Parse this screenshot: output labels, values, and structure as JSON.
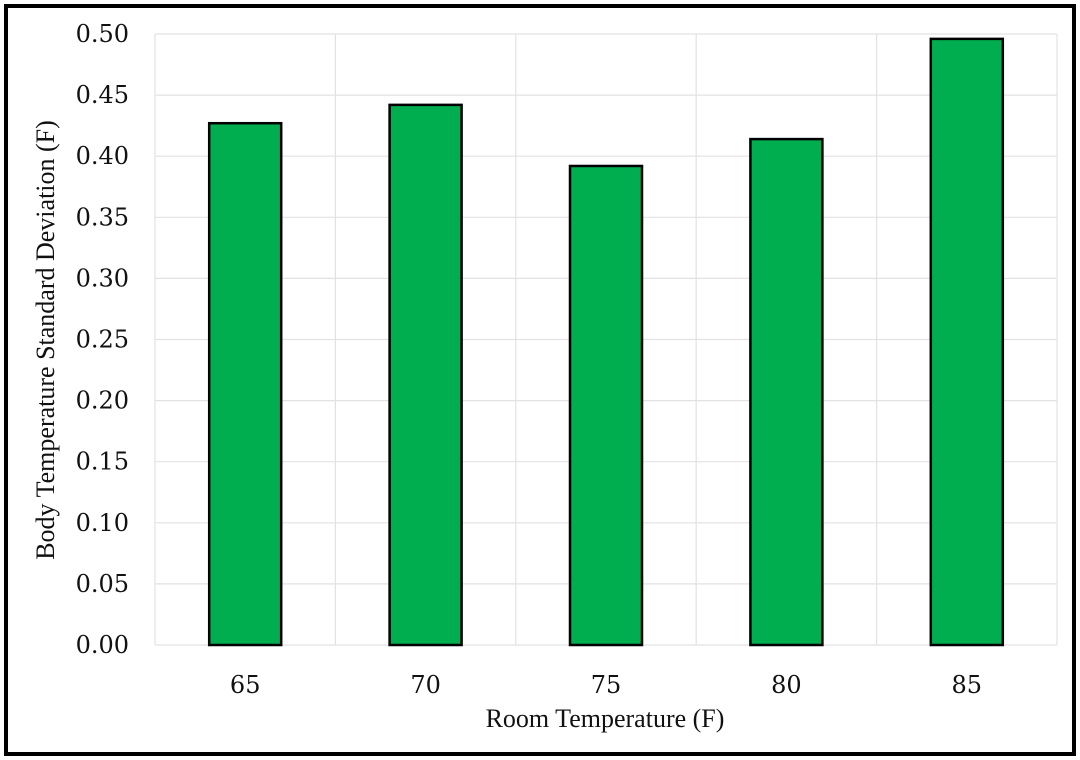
{
  "colors": {
    "bar_fill": "#00ad4f",
    "bar_stroke": "#000000",
    "grid": "#e2e2e2",
    "background": "#ffffff"
  },
  "chart_data": {
    "type": "bar",
    "title": "",
    "xlabel": "Room Temperature (F)",
    "ylabel": "Body Temperature Standard Deviation (F)",
    "categories": [
      "65",
      "70",
      "75",
      "80",
      "85"
    ],
    "values": [
      0.427,
      0.442,
      0.392,
      0.414,
      0.496
    ],
    "ylim": [
      0,
      0.5
    ],
    "yticks": [
      "0.00",
      "0.05",
      "0.10",
      "0.15",
      "0.20",
      "0.25",
      "0.30",
      "0.35",
      "0.40",
      "0.45",
      "0.50"
    ],
    "grid": true,
    "legend": "none"
  }
}
